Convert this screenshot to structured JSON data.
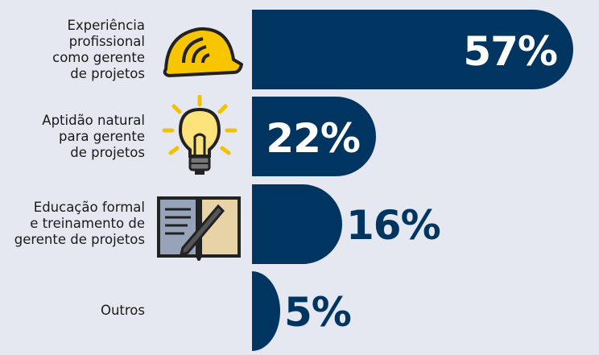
{
  "chart_data": {
    "type": "bar",
    "orientation": "horizontal",
    "categories": [
      "Experiência\nprofissional\ncomo gerente\nde projetos",
      "Aptidão natural\npara gerente\nde projetos",
      "Educação formal\ne treinamento de\ngerente de projetos",
      "Outros"
    ],
    "values": [
      57,
      22,
      16,
      5
    ],
    "value_labels": [
      "57%",
      "22%",
      "16%",
      "5%"
    ],
    "color": "#003561"
  }
}
